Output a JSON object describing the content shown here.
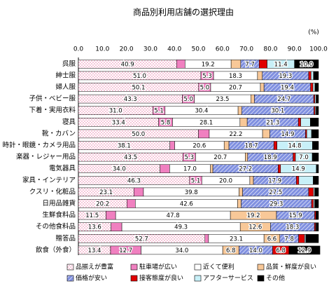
{
  "chart_data": {
    "type": "stacked-bar-horizontal",
    "title": "商品別利用店舗の選択理由",
    "unit_label": "(%)",
    "categories": [
      "呉服",
      "紳士服",
      "婦人服",
      "子供・ベビー服",
      "下着・実用衣料",
      "寝具",
      "靴・カバン",
      "時計・眼鏡・カメラ用品",
      "楽器・レジャー用品",
      "電気器具",
      "家具・インテリア",
      "クスリ・化粧品",
      "日用品雑貨",
      "生鮮食料品",
      "その他食料品",
      "贈答品",
      "飲食（外食）"
    ],
    "xlim": [
      0,
      100
    ],
    "xticks": [
      {
        "value": 0,
        "label": "0.0"
      },
      {
        "value": 10,
        "label": "10.0"
      },
      {
        "value": 20,
        "label": "20.0"
      },
      {
        "value": 30,
        "label": "30.0"
      },
      {
        "value": 40,
        "label": "40.0"
      },
      {
        "value": 50,
        "label": "50.0"
      },
      {
        "value": 60,
        "label": "60.0"
      },
      {
        "value": 70,
        "label": "70.0"
      },
      {
        "value": 80,
        "label": "80.0"
      },
      {
        "value": 90,
        "label": "90.0"
      },
      {
        "value": 100,
        "label": "100.0"
      }
    ],
    "series": [
      {
        "name": "品揃えが豊富",
        "color": "#ffffff",
        "pattern": "dots",
        "values": [
          40.9,
          51.0,
          50.1,
          43.3,
          31.0,
          33.4,
          50.0,
          38.1,
          43.5,
          34.0,
          46.3,
          23.1,
          20.2,
          11.5,
          13.6,
          52.7,
          13.4
        ],
        "value_labels": [
          "40.9",
          "51.0",
          "50.1",
          "43.3",
          "31.0",
          "33.4",
          "50.0",
          "38.1",
          "43.5",
          "34.0",
          "46.3",
          "23.1",
          "20.2",
          "11.5",
          "13.6",
          "52.7",
          "13.4"
        ]
      },
      {
        "name": "駐車場が広い",
        "color": "#f080c0",
        "pattern": "solid",
        "values": [
          3.5,
          5.3,
          5.0,
          5.0,
          5.1,
          5.8,
          4.5,
          2.0,
          5.3,
          4.0,
          5.1,
          4.0,
          3.5,
          4.0,
          4.5,
          1.5,
          12.7
        ],
        "value_labels": [
          null,
          "5.3",
          "5.0",
          "5.0",
          "5.1",
          "5.8",
          null,
          null,
          "5.3",
          null,
          "5.1",
          null,
          null,
          null,
          null,
          null,
          "12.7"
        ]
      },
      {
        "name": "近くて便利",
        "color": "#ffffff",
        "pattern": "solid",
        "values": [
          19.2,
          18.3,
          20.7,
          23.5,
          30.4,
          28.1,
          22.2,
          20.6,
          20.7,
          17.0,
          20.0,
          39.8,
          42.6,
          47.8,
          49.3,
          23.1,
          34.0
        ],
        "value_labels": [
          "19.2",
          "18.3",
          "20.7",
          "23.5",
          "30.4",
          "28.1",
          "22.2",
          "20.6",
          "20.7",
          "17.0",
          "20.0",
          "39.8",
          "42.6",
          "47.8",
          "49.3",
          "23.1",
          "34.0"
        ]
      },
      {
        "name": "品質・鮮度が良い",
        "color": "#f8c898",
        "pattern": "solid",
        "values": [
          4.0,
          2.0,
          1.5,
          1.5,
          1.5,
          3.0,
          3.0,
          2.0,
          1.0,
          1.0,
          1.5,
          1.5,
          1.5,
          19.2,
          12.6,
          6.6,
          6.8
        ],
        "value_labels": [
          null,
          null,
          null,
          null,
          null,
          null,
          null,
          null,
          null,
          null,
          null,
          null,
          null,
          "19.2",
          "12.6",
          "6.6",
          "6.8"
        ]
      },
      {
        "name": "価格が安い",
        "color": "#8090e0",
        "pattern": "hatch",
        "values": [
          7.7,
          19.3,
          19.4,
          24.7,
          30.1,
          21.3,
          14.9,
          18.7,
          18.9,
          27.2,
          17.9,
          27.5,
          29.3,
          15.9,
          18.3,
          7.8,
          14.0
        ],
        "value_labels": [
          "7.7",
          "19.3",
          "19.4",
          "24.7",
          "30.1",
          "21.3",
          "14.9",
          "18.7",
          "18.9",
          "27.2",
          "17.9",
          "27.5",
          "29.3",
          "15.9",
          "18.3",
          "7.8",
          "14.0"
        ]
      },
      {
        "name": "接客態度が良い",
        "color": "#e00000",
        "pattern": "solid",
        "values": [
          3.3,
          1.0,
          1.0,
          0.5,
          0.5,
          1.0,
          0.5,
          1.3,
          1.0,
          1.0,
          1.0,
          2.0,
          0.8,
          0.5,
          0.5,
          2.5,
          6.8
        ],
        "value_labels": [
          null,
          null,
          null,
          null,
          null,
          null,
          null,
          null,
          null,
          null,
          null,
          null,
          null,
          null,
          null,
          null,
          "6.8"
        ]
      },
      {
        "name": "アフターサービス",
        "color": "#c8f0f8",
        "pattern": "solid",
        "values": [
          11.4,
          1.0,
          0.8,
          0.5,
          0.4,
          4.0,
          2.0,
          14.8,
          7.0,
          14.9,
          6.0,
          0.5,
          0.5,
          0.1,
          0.2,
          0.5,
          0.0
        ],
        "value_labels": [
          "11.4",
          null,
          null,
          null,
          null,
          null,
          null,
          "14.8",
          "7.0",
          "14.9",
          null,
          null,
          null,
          null,
          null,
          null,
          null
        ]
      },
      {
        "name": "その他",
        "color": "#000000",
        "pattern": "solid",
        "values": [
          10.0,
          2.1,
          1.5,
          1.0,
          1.0,
          3.4,
          2.9,
          2.5,
          2.6,
          0.9,
          2.2,
          1.6,
          1.6,
          1.0,
          1.0,
          5.3,
          12.9
        ],
        "value_labels": [
          "10.0",
          null,
          null,
          null,
          null,
          null,
          null,
          null,
          null,
          null,
          null,
          null,
          null,
          null,
          null,
          null,
          "12.9"
        ]
      }
    ]
  }
}
